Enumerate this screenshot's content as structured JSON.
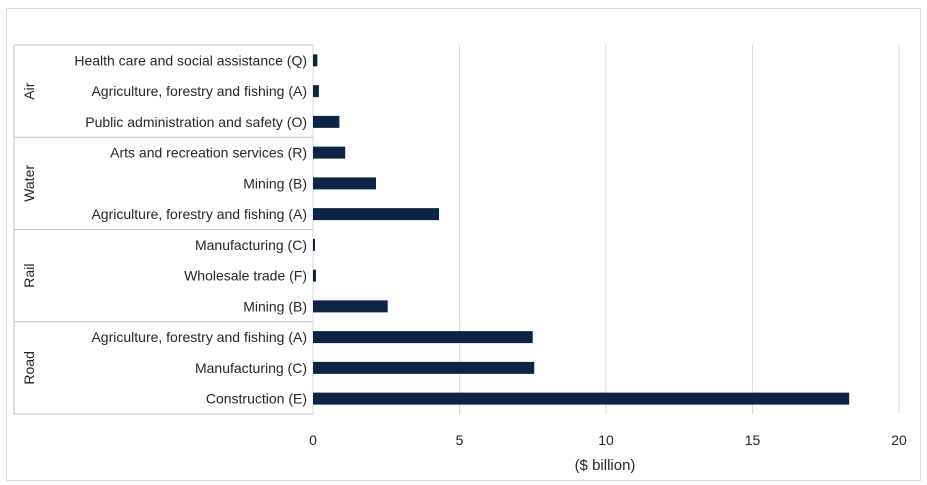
{
  "chart_data": {
    "type": "bar",
    "orientation": "horizontal",
    "xlabel": "($ billion)",
    "ylabel": "",
    "xlim": [
      0,
      20
    ],
    "xticks": [
      0,
      5,
      10,
      15,
      20
    ],
    "grid": true,
    "legend": "none",
    "bar_color": "#0f2346",
    "groups": [
      {
        "name": "Air",
        "categories": [
          "Health care and social assistance (Q)",
          "Agriculture, forestry and fishing (A)",
          "Public administration and safety (O)"
        ],
        "values": [
          0.15,
          0.2,
          0.9
        ]
      },
      {
        "name": "Water",
        "categories": [
          "Arts and recreation services (R)",
          "Mining (B)",
          "Agriculture, forestry and fishing (A)"
        ],
        "values": [
          1.1,
          2.15,
          4.3
        ]
      },
      {
        "name": "Rail",
        "categories": [
          "Manufacturing (C)",
          "Wholesale trade (F)",
          "Mining (B)"
        ],
        "values": [
          0.05,
          0.1,
          2.55
        ]
      },
      {
        "name": "Road",
        "categories": [
          "Agriculture, forestry and fishing (A)",
          "Manufacturing (C)",
          "Construction (E)"
        ],
        "values": [
          7.5,
          7.55,
          18.3
        ]
      }
    ]
  }
}
